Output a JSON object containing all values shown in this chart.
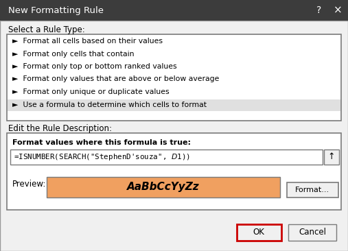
{
  "title": "New Formatting Rule",
  "title_bar_color": "#3c3c3c",
  "title_text_color": "#ffffff",
  "bg_color": "#f0f0f0",
  "dialog_bg": "#f0f0f0",
  "section1_label": "Select a Rule Type:",
  "rule_types": [
    "►  Format all cells based on their values",
    "►  Format only cells that contain",
    "►  Format only top or bottom ranked values",
    "►  Format only values that are above or below average",
    "►  Format only unique or duplicate values",
    "►  Use a formula to determine which cells to format"
  ],
  "selected_rule_index": 5,
  "selected_rule_bg": "#e0e0e0",
  "list_bg": "#ffffff",
  "list_border": "#7a7a7a",
  "section2_label": "Edit the Rule Description:",
  "desc_box_bg": "#ffffff",
  "desc_box_border": "#7a7a7a",
  "formula_label": "Format values where this formula is true:",
  "formula_text": "=ISNUMBER(SEARCH(\"StephenD'souza\", $D$1))",
  "formula_box_bg": "#ffffff",
  "formula_box_border": "#7a7a7a",
  "formula_upload_btn": "↑",
  "preview_label": "Preview:",
  "preview_box_color": "#f0a060",
  "preview_text": "AaBbCcYyZz",
  "preview_box_border": "#7a7a7a",
  "format_btn_label": "Format...",
  "ok_btn_label": "OK",
  "ok_btn_border": "#cc0000",
  "cancel_btn_label": "Cancel",
  "btn_bg": "#f0f0f0",
  "btn_border": "#7a7a7a"
}
